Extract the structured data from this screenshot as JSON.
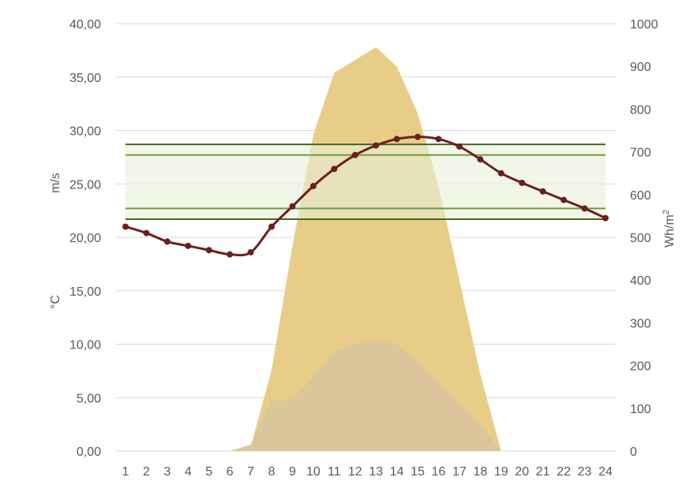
{
  "chart_data": {
    "type": "area",
    "x": [
      1,
      2,
      3,
      4,
      5,
      6,
      7,
      8,
      9,
      10,
      11,
      12,
      13,
      14,
      15,
      16,
      17,
      18,
      19,
      20,
      21,
      22,
      23,
      24
    ],
    "x_ticks": [
      "1",
      "2",
      "3",
      "4",
      "5",
      "6",
      "7",
      "8",
      "9",
      "10",
      "11",
      "12",
      "13",
      "14",
      "15",
      "16",
      "17",
      "18",
      "19",
      "20",
      "21",
      "22",
      "23",
      "24"
    ],
    "y_left_ticks": [
      "0,00",
      "5,00",
      "10,00",
      "15,00",
      "20,00",
      "25,00",
      "30,00",
      "35,00",
      "40,00"
    ],
    "y_right_ticks": [
      "0",
      "100",
      "200",
      "300",
      "400",
      "500",
      "600",
      "700",
      "800",
      "900",
      "1000"
    ],
    "ylim_left": [
      0,
      40
    ],
    "ylim_right": [
      0,
      1000
    ],
    "ylabel_left_top": "m/s",
    "ylabel_left_bottom": "°C",
    "ylabel_right_base": "Wh/m",
    "ylabel_right_sup": "2",
    "grid": true,
    "series": [
      {
        "kind": "area",
        "axis": "right",
        "color": "#e5c97e",
        "values": [
          0,
          0,
          0,
          0,
          0,
          0,
          10,
          190,
          480,
          740,
          885,
          915,
          945,
          900,
          790,
          620,
          400,
          180,
          0,
          0,
          0,
          0,
          0,
          0
        ]
      },
      {
        "kind": "area",
        "axis": "right",
        "color": "#d9c59b",
        "values": [
          0,
          0,
          0,
          0,
          0,
          0,
          15,
          117,
          120,
          175,
          232,
          252,
          262,
          248,
          210,
          160,
          108,
          60,
          0,
          0,
          0,
          0,
          0,
          0
        ]
      },
      {
        "kind": "line",
        "axis": "left",
        "color": "#6b1f1f",
        "values": [
          21.0,
          20.4,
          19.6,
          19.2,
          18.8,
          18.4,
          18.6,
          21.0,
          22.9,
          24.8,
          26.4,
          27.7,
          28.6,
          29.2,
          29.4,
          29.2,
          28.5,
          27.3,
          26.0,
          25.1,
          24.3,
          23.5,
          22.7,
          21.8
        ]
      }
    ],
    "comfort_band": {
      "fill": "#e8f0da",
      "outer_color": "#4a6420",
      "inner_color": "#6f9a3c",
      "outer_lower": 21.7,
      "inner_lower": 22.7,
      "inner_upper": 27.7,
      "outer_upper": 28.7
    }
  }
}
